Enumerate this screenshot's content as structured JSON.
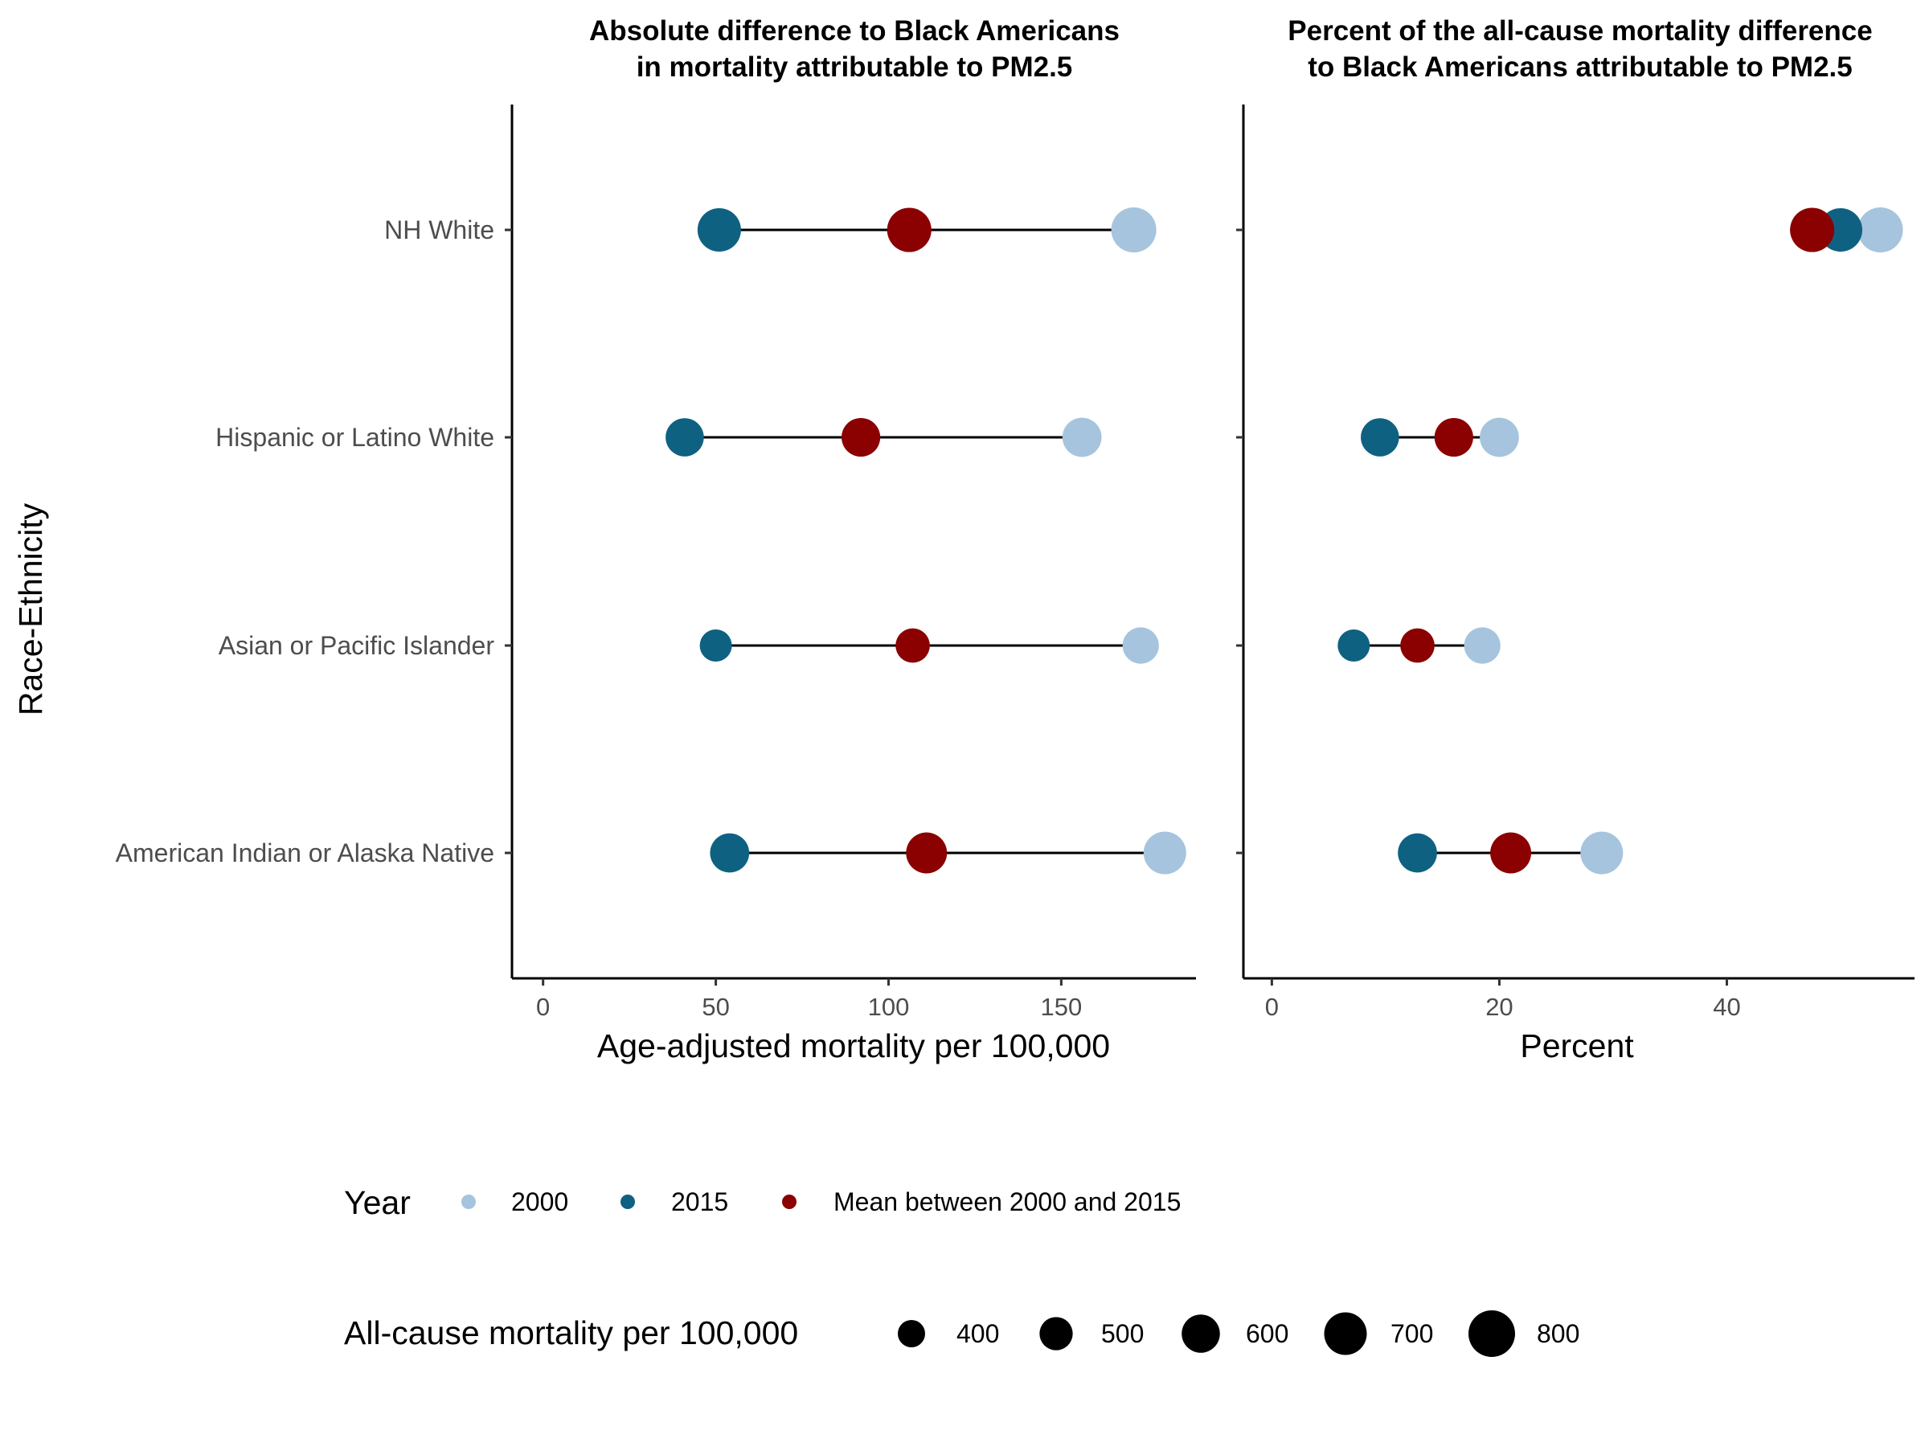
{
  "chart_data": [
    {
      "type": "dot",
      "title_lines": [
        "Absolute difference to Black Americans",
        "in mortality attributable to PM2.5"
      ],
      "xlabel": "Age-adjusted mortality per 100,000",
      "ylabel": "Race-Ethnicity",
      "xlim": [
        -9,
        189
      ],
      "xticks": [
        0,
        50,
        100,
        150
      ],
      "xtick_labels": [
        "0",
        "50",
        "100",
        "150"
      ],
      "categories": [
        "NH White",
        "Hispanic or Latino White",
        "Asian or Pacific Islander",
        "American Indian or Alaska Native"
      ],
      "series": [
        {
          "name": "2000",
          "values": [
            171,
            156,
            173,
            180
          ],
          "sizes": [
            760,
            620,
            560,
            700
          ]
        },
        {
          "name": "2015",
          "values": [
            51,
            41,
            50,
            54
          ],
          "sizes": [
            720,
            600,
            480,
            620
          ]
        },
        {
          "name": "Mean between 2000 and 2015",
          "values": [
            106,
            92,
            107,
            111
          ],
          "sizes": [
            740,
            610,
            520,
            660
          ]
        }
      ]
    },
    {
      "type": "dot",
      "title_lines": [
        "Percent of the all-cause mortality difference",
        "to Black Americans attributable to PM2.5"
      ],
      "xlabel": "Percent",
      "xlim": [
        -2.5,
        56.5
      ],
      "xticks": [
        0,
        20,
        40
      ],
      "xtick_labels": [
        "0",
        "20",
        "40"
      ],
      "categories": [
        "NH White",
        "Hispanic or Latino White",
        "Asian or Pacific Islander",
        "American Indian or Alaska Native"
      ],
      "series": [
        {
          "name": "2000",
          "values": [
            53.5,
            20,
            18.5,
            29
          ],
          "sizes": [
            760,
            620,
            560,
            700
          ]
        },
        {
          "name": "2015",
          "values": [
            50,
            9.5,
            7.2,
            12.8
          ],
          "sizes": [
            720,
            600,
            480,
            620
          ]
        },
        {
          "name": "Mean between 2000 and 2015",
          "values": [
            47.5,
            16,
            12.8,
            21
          ],
          "sizes": [
            740,
            610,
            520,
            660
          ]
        }
      ]
    }
  ],
  "legend": {
    "color_title": "Year",
    "color_items": [
      {
        "label": "2000",
        "color": "#a6c4dd"
      },
      {
        "label": "2015",
        "color": "#0f6182"
      },
      {
        "label": "Mean between 2000 and 2015",
        "color": "#8b0000"
      }
    ],
    "size_title": "All-cause mortality per 100,000",
    "size_items": [
      {
        "label": "400",
        "value": 400
      },
      {
        "label": "500",
        "value": 500
      },
      {
        "label": "600",
        "value": 600
      },
      {
        "label": "700",
        "value": 700
      },
      {
        "label": "800",
        "value": 800
      }
    ],
    "size_range": [
      400,
      800
    ]
  }
}
